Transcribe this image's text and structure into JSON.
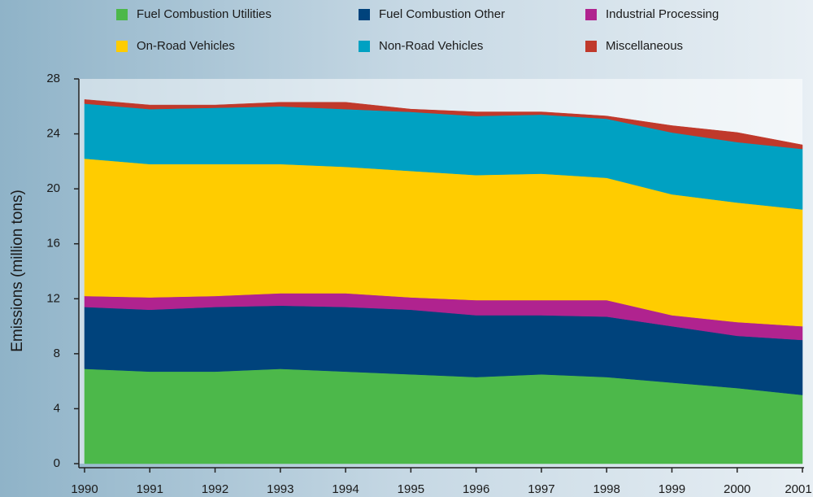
{
  "chart_data": {
    "type": "stacked_area",
    "ylabel": "Emissions (million tons)",
    "categories": [
      "1990",
      "1991",
      "1992",
      "1993",
      "1994",
      "1995",
      "1996",
      "1997",
      "1998",
      "1999",
      "2000",
      "2001"
    ],
    "ylim": [
      0,
      28
    ],
    "yticks": [
      0,
      4,
      8,
      12,
      16,
      20,
      24,
      28
    ],
    "series": [
      {
        "name": "Fuel Combustion Utilities",
        "color": "#4cb84a",
        "values": [
          6.9,
          6.7,
          6.7,
          6.9,
          6.7,
          6.5,
          6.3,
          6.5,
          6.3,
          5.9,
          5.5,
          5.0
        ]
      },
      {
        "name": "Fuel Combustion Other",
        "color": "#00437c",
        "values": [
          4.5,
          4.5,
          4.7,
          4.6,
          4.7,
          4.7,
          4.5,
          4.3,
          4.4,
          4.1,
          3.8,
          4.0
        ]
      },
      {
        "name": "Industrial Processing",
        "color": "#b0238f",
        "values": [
          0.8,
          0.9,
          0.8,
          0.9,
          1.0,
          0.9,
          1.1,
          1.1,
          1.2,
          0.8,
          1.0,
          1.0
        ]
      },
      {
        "name": "On-Road Vehicles",
        "color": "#ffcc00",
        "values": [
          10.0,
          9.7,
          9.6,
          9.4,
          9.2,
          9.2,
          9.1,
          9.2,
          8.9,
          8.8,
          8.7,
          8.5
        ]
      },
      {
        "name": "Non-Road Vehicles",
        "color": "#00a1c2",
        "values": [
          4.0,
          4.0,
          4.1,
          4.2,
          4.2,
          4.3,
          4.3,
          4.3,
          4.3,
          4.5,
          4.4,
          4.4
        ]
      },
      {
        "name": "Miscellaneous",
        "color": "#c0392b",
        "values": [
          0.3,
          0.3,
          0.2,
          0.3,
          0.5,
          0.2,
          0.3,
          0.2,
          0.2,
          0.5,
          0.7,
          0.3
        ]
      }
    ]
  }
}
